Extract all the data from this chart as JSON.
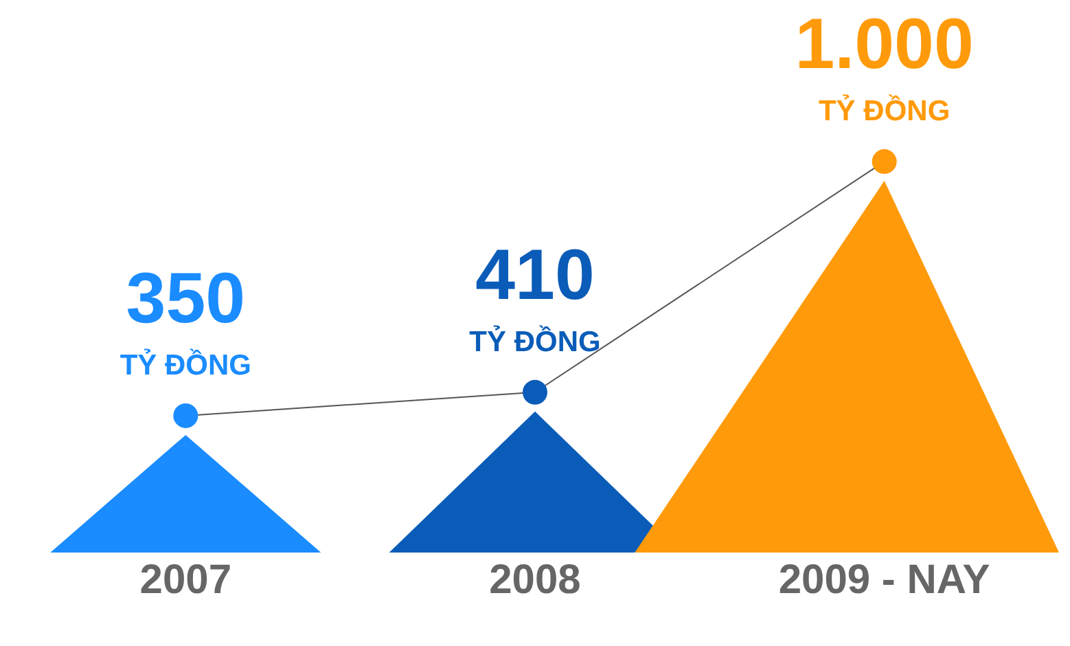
{
  "chart_data": {
    "type": "line",
    "categories": [
      "2007",
      "2008",
      "2009 - NAY"
    ],
    "series": [
      {
        "color": "#555555",
        "colors": [
          "#1a8cff",
          "#0a5cb8",
          "#ff9a0a"
        ],
        "values": [
          350,
          410,
          1000
        ],
        "value_labels": [
          "350",
          "410",
          "1.000"
        ]
      }
    ],
    "annotations": [
      {
        "text": "TỶ ĐỒNG",
        "x": "2007",
        "y": 350
      },
      {
        "text": "TỶ ĐỒNG",
        "x": "2008",
        "y": 410
      },
      {
        "text": "TỶ ĐỒNG",
        "x": "2009 - NAY",
        "y": 1000
      }
    ],
    "marker": "circle"
  }
}
